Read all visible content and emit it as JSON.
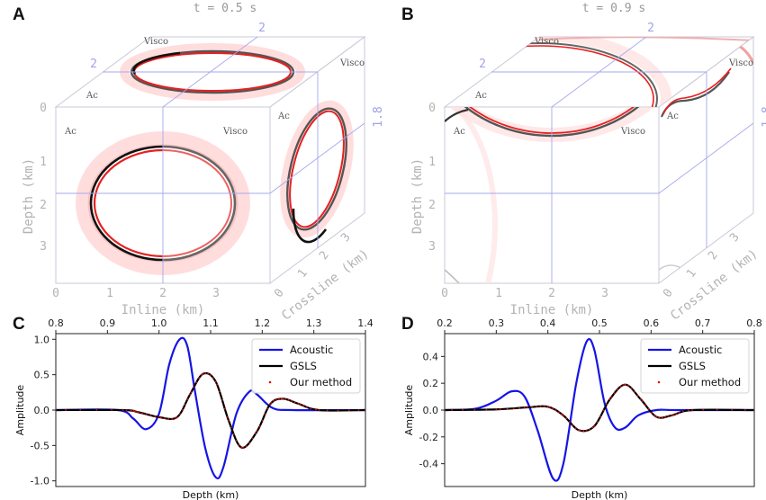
{
  "panels": {
    "A": {
      "label": "A",
      "time_title": "t = 0.5 s"
    },
    "B": {
      "label": "B",
      "time_title": "t = 0.9 s"
    },
    "C": {
      "label": "C"
    },
    "D": {
      "label": "D"
    }
  },
  "cube_text": {
    "visco": "Visco",
    "ac": "Ac",
    "inline_title": "Inline (km)",
    "depth_title": "Depth (km)",
    "crossline_title": "Crossline (km)",
    "top_inline_guide": "2",
    "top_crossline_guide": "2",
    "side_depth_guide": "1.8",
    "inline_ticks": [
      "0",
      "1",
      "2",
      "3"
    ],
    "depth_ticks": [
      "0",
      "1",
      "2",
      "3"
    ],
    "crossline_ticks": [
      "0",
      "1",
      "2",
      "3"
    ]
  },
  "colors": {
    "acoustic": "#1515e6",
    "gsls": "#000000",
    "ours": "#e01010",
    "guide": "#a5a8ee"
  },
  "chart_data": [
    {
      "type": "line",
      "panel": "C",
      "xlabel": "Depth (km)",
      "ylabel": "Amplitude",
      "xlim": [
        0.8,
        1.4
      ],
      "ylim": [
        -1.08,
        1.08
      ],
      "xticks": [
        "0.8",
        "0.9",
        "1.0",
        "1.1",
        "1.2",
        "1.3",
        "1.4"
      ],
      "yticks": [
        "1.0",
        "0.5",
        "0.0",
        "-0.5",
        "-1.0"
      ],
      "legend": [
        "Acoustic",
        "GSLS",
        "Our method"
      ],
      "legend_position": "top-right",
      "series": [
        {
          "name": "Acoustic",
          "x": [
            0.8,
            0.92,
            0.95,
            0.975,
            1.0,
            1.02,
            1.04,
            1.055,
            1.07,
            1.09,
            1.11,
            1.125,
            1.15,
            1.175,
            1.19,
            1.22,
            1.26,
            1.4
          ],
          "y": [
            0.0,
            0.0,
            -0.12,
            -0.27,
            -0.05,
            0.65,
            1.0,
            0.9,
            0.25,
            -0.55,
            -0.95,
            -0.8,
            -0.05,
            0.26,
            0.22,
            0.03,
            0.0,
            0.0
          ]
        },
        {
          "name": "GSLS",
          "x": [
            0.8,
            0.93,
            0.96,
            1.0,
            1.035,
            1.06,
            1.085,
            1.11,
            1.135,
            1.16,
            1.19,
            1.215,
            1.24,
            1.27,
            1.31,
            1.4
          ],
          "y": [
            0.0,
            0.0,
            -0.03,
            -0.1,
            -0.1,
            0.22,
            0.51,
            0.4,
            -0.15,
            -0.53,
            -0.3,
            0.08,
            0.16,
            0.09,
            0.0,
            0.0
          ]
        },
        {
          "name": "Our method",
          "x": [
            0.8,
            0.93,
            0.96,
            1.0,
            1.035,
            1.06,
            1.085,
            1.11,
            1.135,
            1.16,
            1.19,
            1.215,
            1.24,
            1.27,
            1.31,
            1.4
          ],
          "y": [
            0.0,
            0.0,
            -0.03,
            -0.1,
            -0.1,
            0.22,
            0.51,
            0.4,
            -0.15,
            -0.53,
            -0.3,
            0.08,
            0.16,
            0.09,
            0.0,
            0.0
          ]
        }
      ]
    },
    {
      "type": "line",
      "panel": "D",
      "xlabel": "Depth (km)",
      "ylabel": "Amplitude",
      "xlim": [
        0.2,
        0.8
      ],
      "ylim": [
        -0.57,
        0.57
      ],
      "xticks": [
        "0.2",
        "0.3",
        "0.4",
        "0.5",
        "0.6",
        "0.7",
        "0.8"
      ],
      "yticks": [
        "0.4",
        "0.2",
        "0.0",
        "-0.2",
        "-0.4"
      ],
      "legend": [
        "Acoustic",
        "GSLS",
        "Our method"
      ],
      "legend_position": "top-right",
      "series": [
        {
          "name": "Acoustic",
          "x": [
            0.2,
            0.26,
            0.3,
            0.33,
            0.355,
            0.38,
            0.41,
            0.43,
            0.455,
            0.475,
            0.49,
            0.51,
            0.53,
            0.55,
            0.575,
            0.61,
            0.65,
            0.8
          ],
          "y": [
            0.0,
            0.01,
            0.07,
            0.14,
            0.1,
            -0.15,
            -0.51,
            -0.4,
            0.2,
            0.51,
            0.45,
            0.05,
            -0.13,
            -0.13,
            -0.04,
            0.0,
            0.0,
            0.0
          ]
        },
        {
          "name": "GSLS",
          "x": [
            0.2,
            0.3,
            0.36,
            0.4,
            0.43,
            0.46,
            0.49,
            0.52,
            0.55,
            0.58,
            0.61,
            0.64,
            0.68,
            0.8
          ],
          "y": [
            0.0,
            0.005,
            0.02,
            0.025,
            -0.04,
            -0.15,
            -0.12,
            0.08,
            0.19,
            0.08,
            -0.05,
            -0.04,
            0.0,
            0.0
          ]
        },
        {
          "name": "Our method",
          "x": [
            0.2,
            0.3,
            0.36,
            0.4,
            0.43,
            0.46,
            0.49,
            0.52,
            0.55,
            0.58,
            0.61,
            0.64,
            0.68,
            0.8
          ],
          "y": [
            0.0,
            0.005,
            0.02,
            0.025,
            -0.04,
            -0.15,
            -0.12,
            0.08,
            0.19,
            0.08,
            -0.05,
            -0.04,
            0.0,
            0.0
          ]
        }
      ]
    }
  ]
}
